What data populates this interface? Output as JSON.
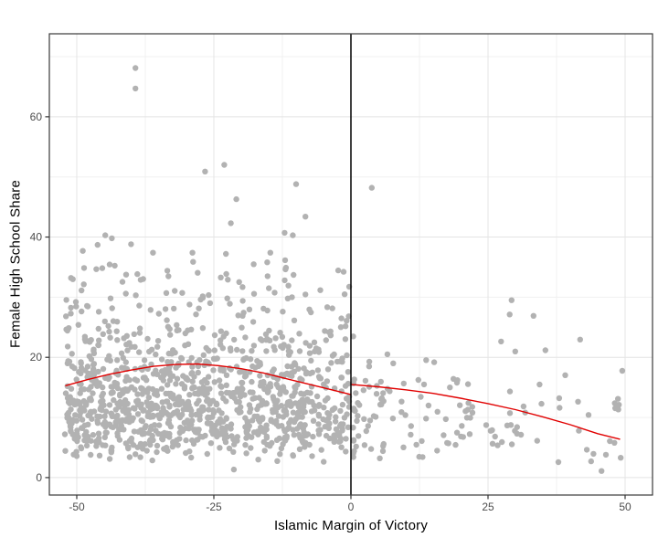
{
  "chart_data": {
    "type": "scatter",
    "title": "",
    "xlabel": "Islamic Margin of Victory",
    "ylabel": "Female High School Share",
    "legend": null,
    "x_axis": {
      "domain": [
        -55,
        55
      ],
      "ticks": [
        {
          "value": -50,
          "label": "-50"
        },
        {
          "value": -25,
          "label": "-25"
        },
        {
          "value": 0,
          "label": "0"
        },
        {
          "value": 25,
          "label": "25"
        },
        {
          "value": 50,
          "label": "50"
        }
      ],
      "minor": [
        -37.5,
        -12.5,
        12.5,
        37.5
      ]
    },
    "y_axis": {
      "domain": [
        -2.9,
        73.8
      ],
      "ticks": [
        {
          "value": 0,
          "label": "0"
        },
        {
          "value": 20,
          "label": "20"
        },
        {
          "value": 40,
          "label": "40"
        },
        {
          "value": 60,
          "label": "60"
        }
      ],
      "minor": [
        10,
        30,
        50,
        70
      ]
    },
    "style": {
      "background": "#ffffff",
      "panel_background": "#ffffff",
      "grid_major_color": "#e4e4e4",
      "grid_minor_color": "#f0f0f0",
      "border_color": "#3a3a3a",
      "tick_color": "#333333",
      "tick_label_color": "#4d4d4d",
      "tick_label_size": 12,
      "point_color": "#b2b2b2",
      "point_radius": 3.2,
      "trend_color": "#e10000",
      "trend_width": 1.4,
      "cutoff_color": "#000000",
      "cutoff_width": 1.5
    },
    "cutoff_line": {
      "x": 0
    },
    "trend": {
      "segments": [
        {
          "x": [
            -52,
            -48,
            -44,
            -40,
            -36,
            -32,
            -28,
            -24,
            -20,
            -16,
            -12,
            -8,
            -4,
            0
          ],
          "y": [
            15.3,
            16.3,
            17.2,
            17.9,
            18.5,
            18.8,
            18.9,
            18.6,
            18.1,
            17.4,
            16.5,
            15.6,
            14.7,
            13.8
          ]
        },
        {
          "x": [
            0,
            5,
            10,
            15,
            20,
            25,
            30,
            35,
            40,
            45,
            49
          ],
          "y": [
            15.5,
            15.1,
            14.6,
            14.0,
            13.2,
            12.3,
            11.3,
            10.1,
            8.8,
            7.3,
            6.4
          ]
        }
      ]
    },
    "notable_points": [
      [
        -39.3,
        68.1
      ],
      [
        -39.3,
        64.7
      ],
      [
        -23.1,
        52.0
      ],
      [
        -26.6,
        50.9
      ],
      [
        -10.0,
        48.8
      ],
      [
        -20.9,
        46.3
      ],
      [
        -8.3,
        43.4
      ],
      [
        -21.9,
        42.3
      ],
      [
        -12.1,
        40.7
      ],
      [
        -10.6,
        40.3
      ],
      [
        -44.8,
        40.3
      ],
      [
        -43.6,
        39.8
      ],
      [
        -40.1,
        38.8
      ],
      [
        -46.2,
        38.7
      ],
      [
        -48.9,
        37.7
      ],
      [
        -36.1,
        37.4
      ],
      [
        -28.9,
        37.4
      ],
      [
        -22.8,
        37.2
      ],
      [
        -14.7,
        37.4
      ],
      [
        3.8,
        48.2
      ],
      [
        33.3,
        26.9
      ],
      [
        29.3,
        29.5
      ],
      [
        48.7,
        13.1
      ],
      [
        46.5,
        3.8
      ],
      [
        49.2,
        3.3
      ],
      [
        43.8,
        2.7
      ],
      [
        45.7,
        1.1
      ]
    ],
    "point_cloud": {
      "seed": 1337,
      "groups": [
        {
          "name": "left-of-cutoff",
          "n": 1150,
          "x": {
            "min": -52.2,
            "max": -0.3,
            "pow": 1.0
          },
          "y": {
            "mu": 2.6,
            "sigma": 0.55,
            "min": 0.5,
            "max": 36.5
          }
        },
        {
          "name": "right-of-cutoff",
          "n": 135,
          "x": {
            "min": 0.4,
            "max": 50.0,
            "pow": 1.7
          },
          "y": {
            "mu": 2.3,
            "sigma": 0.55,
            "min": 0.5,
            "max": 31.0
          }
        }
      ]
    },
    "layout": {
      "grid": "on",
      "legend_position": "none"
    }
  }
}
